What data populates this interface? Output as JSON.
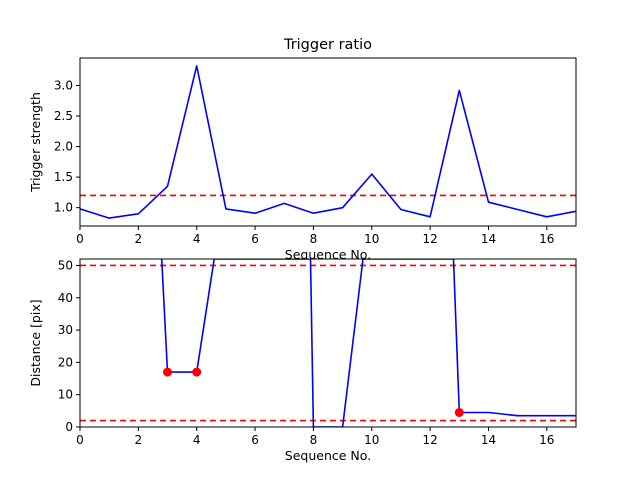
{
  "chart_data": [
    {
      "type": "line",
      "title": "Trigger ratio",
      "xlabel": "Sequence No.",
      "ylabel": "Trigger strength",
      "xlim": [
        0,
        17
      ],
      "ylim": [
        0.7,
        3.45
      ],
      "xticks": [
        "0",
        "2",
        "4",
        "6",
        "8",
        "10",
        "12",
        "14",
        "16"
      ],
      "yticks": [
        "1.0",
        "1.5",
        "2.0",
        "2.5",
        "3.0"
      ],
      "grid": false,
      "series": [
        {
          "color": "#0000ff",
          "x": [
            0,
            1,
            2,
            3,
            4,
            5,
            6,
            7,
            8,
            9,
            10,
            11,
            12,
            13,
            14,
            15,
            16,
            17
          ],
          "values": [
            0.98,
            0.83,
            0.9,
            1.35,
            3.32,
            0.98,
            0.91,
            1.07,
            0.91,
            1.0,
            1.55,
            0.97,
            0.85,
            2.92,
            1.09,
            0.97,
            0.85,
            0.94
          ]
        }
      ],
      "hlines": [
        {
          "value": 1.2,
          "color": "#ff0000",
          "style": "dashed"
        }
      ]
    },
    {
      "type": "line",
      "title": "",
      "xlabel": "Sequence No.",
      "ylabel": "Distance [pix]",
      "xlim": [
        0,
        17
      ],
      "ylim": [
        0,
        52
      ],
      "xticks": [
        "0",
        "2",
        "4",
        "6",
        "8",
        "10",
        "12",
        "14",
        "16"
      ],
      "yticks": [
        "0",
        "10",
        "20",
        "30",
        "40",
        "50"
      ],
      "grid": false,
      "series": [
        {
          "color": "#0000ff",
          "x": [
            2.8,
            3,
            4,
            4.6,
            7.9,
            8,
            9,
            9.7,
            12.8,
            13,
            14,
            15,
            16,
            17
          ],
          "values": [
            52,
            17,
            17,
            52,
            52,
            0,
            0,
            52,
            52,
            4.5,
            4.5,
            3.5,
            3.5,
            3.5
          ]
        }
      ],
      "markers": {
        "color": "#ff0000",
        "x": [
          3,
          4,
          13
        ],
        "values": [
          17,
          17,
          4.5
        ]
      },
      "hlines": [
        {
          "value": 50,
          "color": "#ff0000",
          "style": "dashed"
        },
        {
          "value": 2,
          "color": "#ff0000",
          "style": "dashed"
        }
      ]
    }
  ]
}
